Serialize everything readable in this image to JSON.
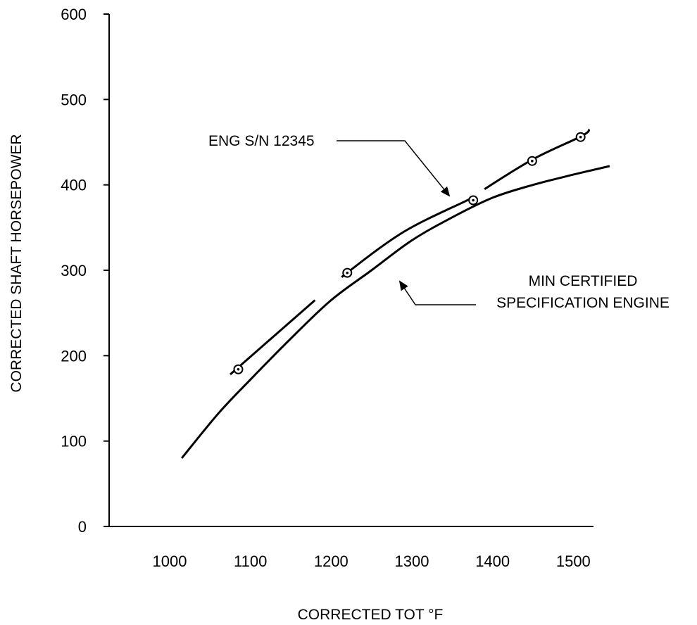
{
  "chart_data": {
    "type": "line",
    "title": "",
    "xlabel": "CORRECTED TOT °F",
    "ylabel": "CORRECTED SHAFT HORSEPOWER",
    "xlim": [
      925,
      1525
    ],
    "ylim": [
      0,
      600
    ],
    "x_ticks": [
      1000,
      1100,
      1200,
      1300,
      1400,
      1500
    ],
    "y_ticks": [
      0,
      100,
      200,
      300,
      400,
      500,
      600
    ],
    "x_tick_labels": [
      "1000",
      "1100",
      "1200",
      "1300",
      "1400",
      "1500"
    ],
    "y_tick_labels": [
      "0",
      "100",
      "200",
      "300",
      "400",
      "500",
      "600"
    ],
    "grid": false,
    "legend": "none",
    "series": [
      {
        "key": "eng",
        "x": [
          1075,
          1180,
          1213,
          1290,
          1375,
          1390,
          1450,
          1510,
          1520
        ],
        "y": [
          178,
          265,
          292,
          345,
          385,
          395,
          430,
          457,
          465
        ],
        "markers": [
          {
            "x": 1085,
            "y": 184
          },
          {
            "x": 1220,
            "y": 297
          },
          {
            "x": 1376,
            "y": 382
          },
          {
            "x": 1449,
            "y": 428
          },
          {
            "x": 1509,
            "y": 456
          }
        ],
        "gaps": [
          [
            1180,
            1213
          ],
          [
            1375,
            1390
          ]
        ]
      },
      {
        "key": "min",
        "x": [
          1015,
          1060,
          1100,
          1150,
          1200,
          1250,
          1300,
          1350,
          1400,
          1450,
          1500,
          1545
        ],
        "y": [
          80,
          132,
          172,
          220,
          265,
          300,
          335,
          362,
          385,
          400,
          412,
          422
        ],
        "markers": [],
        "gaps": []
      }
    ],
    "annotations": [
      {
        "key": "eng",
        "lines": [
          "ENG S/N 12345"
        ]
      },
      {
        "key": "min",
        "lines": [
          "MIN CERTIFIED",
          "SPECIFICATION ENGINE"
        ]
      }
    ]
  }
}
